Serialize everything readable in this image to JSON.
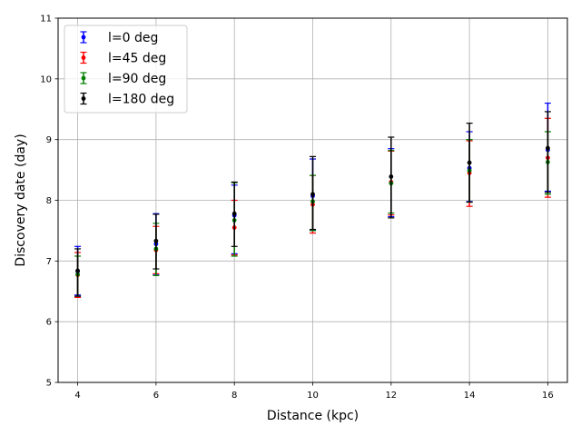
{
  "chart_data": {
    "type": "scatter",
    "title": "",
    "xlabel": "Distance (kpc)",
    "ylabel": "Discovery date (day)",
    "xlim": [
      3.5,
      16.5
    ],
    "ylim": [
      5,
      11
    ],
    "xticks": [
      4,
      6,
      8,
      10,
      12,
      14,
      16
    ],
    "yticks": [
      5,
      6,
      7,
      8,
      9,
      10,
      11
    ],
    "grid": true,
    "legend_position": "top-left",
    "x": [
      4,
      6,
      8,
      10,
      12,
      14,
      16
    ],
    "series": [
      {
        "name": "l=0 deg",
        "color": "#0000ff",
        "y": [
          6.83,
          7.28,
          7.75,
          8.07,
          8.29,
          8.53,
          8.83
        ],
        "err_low": [
          0.39,
          0.5,
          0.63,
          0.56,
          0.56,
          0.55,
          0.68
        ],
        "err_high": [
          0.41,
          0.5,
          0.5,
          0.61,
          0.56,
          0.6,
          0.77
        ]
      },
      {
        "name": "l=45 deg",
        "color": "#ff0000",
        "y": [
          6.77,
          7.18,
          7.55,
          7.93,
          8.3,
          8.45,
          8.7
        ],
        "err_low": [
          0.37,
          0.39,
          0.45,
          0.47,
          0.54,
          0.55,
          0.65
        ],
        "err_high": [
          0.37,
          0.39,
          0.45,
          0.48,
          0.51,
          0.53,
          0.65
        ]
      },
      {
        "name": "l=90 deg",
        "color": "#008000",
        "y": [
          6.78,
          7.2,
          7.67,
          7.98,
          8.28,
          8.49,
          8.63
        ],
        "err_low": [
          0.36,
          0.44,
          0.59,
          0.48,
          0.49,
          0.52,
          0.53
        ],
        "err_high": [
          0.3,
          0.42,
          0.62,
          0.43,
          0.54,
          0.51,
          0.5
        ]
      },
      {
        "name": "l=180 deg",
        "color": "#000000",
        "y": [
          6.84,
          7.33,
          7.78,
          8.1,
          8.39,
          8.62,
          8.86
        ],
        "err_low": [
          0.42,
          0.46,
          0.54,
          0.58,
          0.68,
          0.65,
          0.73
        ],
        "err_high": [
          0.36,
          0.44,
          0.52,
          0.62,
          0.65,
          0.65,
          0.6
        ]
      }
    ]
  }
}
